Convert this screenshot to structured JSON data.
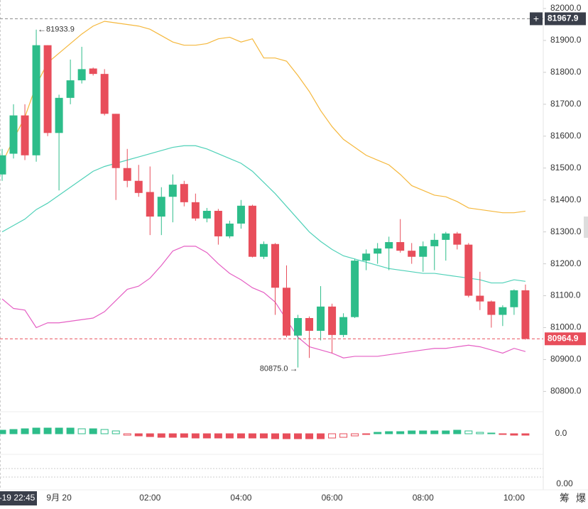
{
  "chart_data": {
    "type": "candlestick",
    "up_color": "#2dbd8a",
    "down_color": "#e84e5b",
    "open": [
      81480,
      81545,
      81665,
      81540,
      81885,
      81610,
      81720,
      81775,
      81812,
      81795,
      81670,
      81500,
      81460,
      81425,
      81348,
      81410,
      81450,
      81393,
      81342,
      81366,
      81286,
      81326,
      81382,
      81222,
      81262,
      81125,
      80975,
      81030,
      80990,
      81066,
      80977,
      81033,
      81210,
      81232,
      81248,
      81268,
      81241,
      81222,
      81255,
      81275,
      81295,
      81260,
      81100,
      81082,
      81040,
      81064,
      81117
    ],
    "high": [
      81560,
      81700,
      81700,
      81933.9,
      81885,
      81730,
      81840,
      81880,
      81815,
      81810,
      81670,
      81560,
      81510,
      81505,
      81440,
      81480,
      81460,
      81420,
      81375,
      81372,
      81335,
      81400,
      81385,
      81270,
      81265,
      81195,
      81040,
      81035,
      81130,
      81075,
      81045,
      81215,
      81245,
      81265,
      81285,
      81340,
      81265,
      81270,
      81295,
      81300,
      81300,
      81265,
      81175,
      81085,
      81070,
      81120,
      81135
    ],
    "low": [
      81460,
      81530,
      81525,
      81520,
      81600,
      81430,
      81700,
      81765,
      81790,
      81665,
      81400,
      81440,
      81410,
      81290,
      81290,
      81330,
      81380,
      81335,
      81330,
      81260,
      81280,
      81310,
      81220,
      81215,
      81040,
      80970,
      80875.0,
      80905,
      80960,
      80920,
      80970,
      81030,
      81180,
      81200,
      81180,
      81235,
      81200,
      81175,
      81180,
      81210,
      81245,
      81095,
      81055,
      81000,
      81005,
      81040,
      80962
    ],
    "close": [
      81540,
      81665,
      81540,
      81885,
      81610,
      81720,
      81775,
      81810,
      81795,
      81670,
      81500,
      81460,
      81422,
      81348,
      81410,
      81448,
      81393,
      81342,
      81366,
      81286,
      81326,
      81382,
      81222,
      81262,
      81125,
      80975,
      81030,
      80990,
      81066,
      80977,
      81033,
      81210,
      81232,
      81248,
      81268,
      81241,
      81222,
      81255,
      81275,
      81295,
      81260,
      81100,
      81082,
      81040,
      81064,
      81117,
      80964.9
    ],
    "lines": [
      {
        "color": "#f5b83d",
        "values": [
          81515,
          81590,
          81660,
          81760,
          81830,
          81860,
          81890,
          81920,
          81945,
          81960,
          81955,
          81950,
          81945,
          81935,
          81915,
          81895,
          81885,
          81885,
          81890,
          81905,
          81910,
          81895,
          81905,
          81845,
          81845,
          81835,
          81790,
          81740,
          81680,
          81630,
          81590,
          81565,
          81540,
          81525,
          81510,
          81480,
          81445,
          81430,
          81415,
          81410,
          81395,
          81375,
          81370,
          81365,
          81360,
          81360,
          81365
        ]
      },
      {
        "color": "#4fd1b8",
        "values": [
          81300,
          81320,
          81340,
          81370,
          81390,
          81415,
          81440,
          81465,
          81490,
          81505,
          81515,
          81525,
          81535,
          81545,
          81555,
          81565,
          81570,
          81570,
          81560,
          81545,
          81530,
          81515,
          81490,
          81455,
          81420,
          81380,
          81340,
          81300,
          81270,
          81245,
          81225,
          81215,
          81205,
          81195,
          81185,
          81180,
          81175,
          81170,
          81170,
          81165,
          81160,
          81155,
          81150,
          81140,
          81140,
          81150,
          81145
        ]
      },
      {
        "color": "#e55fc4",
        "values": [
          81090,
          81060,
          81055,
          81000,
          81015,
          81015,
          81020,
          81025,
          81030,
          81050,
          81085,
          81120,
          81130,
          81155,
          81195,
          81240,
          81255,
          81255,
          81235,
          81200,
          81170,
          81150,
          81125,
          81110,
          81080,
          81025,
          80970,
          80940,
          80930,
          80920,
          80905,
          80910,
          80910,
          80910,
          80915,
          80920,
          80925,
          80930,
          80935,
          80935,
          80940,
          80945,
          80940,
          80930,
          80920,
          80935,
          80925
        ]
      }
    ],
    "ylim": [
      80747.5,
      82026.7
    ],
    "yticks": [
      {
        "value": 82000,
        "label": "82000.0"
      },
      {
        "value": 81900,
        "label": "81900.0"
      },
      {
        "value": 81800,
        "label": "81800.0"
      },
      {
        "value": 81700,
        "label": "81700.0"
      },
      {
        "value": 81600,
        "label": "81600.0"
      },
      {
        "value": 81500,
        "label": "81500.0"
      },
      {
        "value": 81400,
        "label": "81400.0"
      },
      {
        "value": 81300,
        "label": "81300.0"
      },
      {
        "value": 81200,
        "label": "81200.0"
      },
      {
        "value": 81100,
        "label": "81100.0"
      },
      {
        "value": 81000,
        "label": "81000.0"
      },
      {
        "value": 80900,
        "label": "80900.0"
      },
      {
        "value": 80800,
        "label": "80800.0"
      }
    ],
    "xticks": [
      {
        "value": 0,
        "label": "-19 22:45"
      },
      {
        "value": 5,
        "label": "9月 20"
      },
      {
        "value": 13,
        "label": "02:00"
      },
      {
        "value": 21,
        "label": "04:00"
      },
      {
        "value": 29,
        "label": "06:00"
      },
      {
        "value": 37,
        "label": "08:00"
      },
      {
        "value": 45,
        "label": "10:00"
      }
    ],
    "annotations": [
      {
        "index": 3,
        "value": 81933.9,
        "label": "81933.9"
      },
      {
        "index": 26,
        "value": 80875.0,
        "label": "80875.0"
      }
    ],
    "price_lines": [
      {
        "value": 81967.9,
        "label": "81967.9",
        "color": "#888888"
      },
      {
        "value": 80964.9,
        "label": "80964.9",
        "color": "#e84e5b"
      }
    ],
    "macd": {
      "zero_label": "0.0",
      "ylim": [
        -20,
        20
      ],
      "histogram": [
        5,
        6,
        7,
        8,
        8,
        8,
        8,
        7,
        7,
        6,
        4,
        -2,
        -3,
        -4,
        -5,
        -5,
        -5,
        -6,
        -6,
        -6,
        -6,
        -6,
        -6,
        -6,
        -7,
        -7,
        -7,
        -7,
        -7,
        -6,
        -5,
        -3,
        -1,
        2,
        3,
        3,
        4,
        4,
        4,
        4,
        5,
        4,
        2,
        1,
        -1,
        -2,
        -2
      ]
    },
    "oscillator": {
      "zero_label": "0.00"
    },
    "icons": [
      "筹",
      "爆"
    ]
  }
}
